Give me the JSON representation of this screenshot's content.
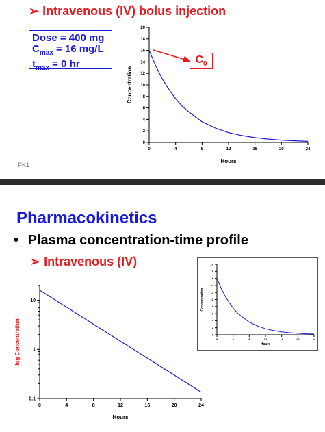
{
  "slide1": {
    "heading_arrow": "➢",
    "heading": "Intravenous (IV) bolus injection",
    "dose_line": "Dose = 400 mg",
    "cmax_c": "C",
    "cmax_sub": "max",
    "cmax_rest": " = 16 mg/L",
    "tmax_t": "t",
    "tmax_sub": "max",
    "tmax_rest": " = 0 hr",
    "c0_c": "C",
    "c0_sub": "0",
    "footer": "PK1"
  },
  "slide2": {
    "title": "Pharmacokinetics",
    "bullet_mark": "•",
    "bullet": "Plasma concentration-time profile",
    "sub_arrow": "➢",
    "sub": "Intravenous (IV)"
  },
  "colors": {
    "red": "#e8181c",
    "blue": "#1a1ad8",
    "curve": "#1a1ad8"
  },
  "chart_data": [
    {
      "id": "top-linear",
      "type": "line",
      "xlabel": "Hours",
      "ylabel": "Concentration",
      "xlim": [
        0,
        24
      ],
      "ylim": [
        0,
        20
      ],
      "xticks": [
        0,
        4,
        8,
        12,
        16,
        20,
        24
      ],
      "yticks": [
        0,
        2,
        4,
        6,
        8,
        10,
        12,
        14,
        16,
        18,
        20
      ],
      "x": [
        0,
        1,
        2,
        3,
        4,
        5,
        6,
        8,
        10,
        12,
        14,
        16,
        18,
        20,
        22,
        24
      ],
      "y": [
        16,
        13.3,
        11.0,
        9.2,
        7.6,
        6.3,
        5.3,
        3.6,
        2.5,
        1.7,
        1.2,
        0.83,
        0.58,
        0.4,
        0.28,
        0.19
      ]
    },
    {
      "id": "bottom-log",
      "type": "line",
      "xlabel": "Hours",
      "ylabel": "log Concentration",
      "xlim": [
        0,
        24
      ],
      "ylim": [
        0.1,
        20
      ],
      "yscale": "log",
      "xticks": [
        0,
        4,
        8,
        12,
        16,
        20,
        24
      ],
      "yticks": [
        0.1,
        1,
        10
      ],
      "x": [
        0,
        24
      ],
      "y": [
        16,
        0.135
      ]
    },
    {
      "id": "inset-linear",
      "type": "line",
      "xlabel": "Hours",
      "ylabel": "Concentration",
      "xlim": [
        0,
        24
      ],
      "ylim": [
        0,
        20
      ],
      "xticks": [
        0,
        4,
        8,
        12,
        16,
        20,
        24
      ],
      "yticks": [
        0,
        2,
        4,
        6,
        8,
        10,
        12,
        14,
        16,
        18,
        20
      ],
      "x": [
        0,
        1,
        2,
        3,
        4,
        5,
        6,
        8,
        10,
        12,
        14,
        16,
        18,
        20,
        22,
        24
      ],
      "y": [
        16,
        13.3,
        11.0,
        9.2,
        7.6,
        6.3,
        5.3,
        3.6,
        2.5,
        1.7,
        1.2,
        0.83,
        0.58,
        0.4,
        0.28,
        0.19
      ]
    }
  ]
}
